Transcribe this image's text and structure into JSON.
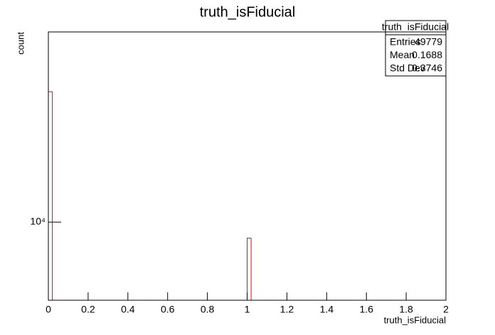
{
  "chart_data": {
    "type": "histogram",
    "title": "truth_isFiducial",
    "x_label": "truth_isFiducial",
    "y_label": "count",
    "bins": [
      0,
      0.02,
      0.04,
      0.06,
      0.08,
      0.1,
      0.12,
      0.14,
      0.16,
      0.18,
      0.2,
      0.22,
      0.24,
      0.26,
      0.28,
      0.3,
      0.32,
      0.34,
      0.36,
      0.38,
      0.4,
      0.42,
      0.44,
      0.46,
      0.48,
      0.5,
      0.52,
      0.54,
      0.56,
      0.58,
      0.6,
      0.62,
      0.64,
      0.66,
      0.68,
      0.7,
      0.72,
      0.74,
      0.76,
      0.78,
      0.8,
      0.82,
      0.84,
      0.86,
      0.88,
      0.9,
      0.92,
      0.94,
      0.96,
      0.98,
      1,
      1.02,
      1.04,
      1.06,
      1.08,
      1.1,
      1.12,
      1.14,
      1.16,
      1.18,
      1.2,
      1.22,
      1.24,
      1.26,
      1.28,
      1.3,
      1.32,
      1.34,
      1.36,
      1.38,
      1.4,
      1.42,
      1.44,
      1.46,
      1.48,
      1.5,
      1.52,
      1.54,
      1.56,
      1.58,
      1.6,
      1.62,
      1.64,
      1.66,
      1.68,
      1.7,
      1.72,
      1.74,
      1.76,
      1.78,
      1.8,
      1.82,
      1.84,
      1.86,
      1.88,
      1.9,
      1.92,
      1.94,
      1.96,
      1.98,
      2
    ],
    "values": [
      41376,
      0,
      0,
      0,
      0,
      0,
      0,
      0,
      0,
      0,
      0,
      0,
      0,
      0,
      0,
      0,
      0,
      0,
      0,
      0,
      0,
      0,
      0,
      0,
      0,
      0,
      0,
      0,
      0,
      0,
      0,
      0,
      0,
      0,
      0,
      0,
      0,
      0,
      0,
      0,
      0,
      0,
      0,
      0,
      0,
      0,
      0,
      0,
      0,
      0,
      8403,
      0,
      0,
      0,
      0,
      0,
      0,
      0,
      0,
      0,
      0,
      0,
      0,
      0,
      0,
      0,
      0,
      0,
      0,
      0,
      0,
      0,
      0,
      0,
      0,
      0,
      0,
      0,
      0,
      0,
      0,
      0,
      0,
      0,
      0,
      0,
      0,
      0,
      0,
      0,
      0,
      0,
      0,
      0,
      0,
      0,
      0,
      0,
      0,
      0
    ],
    "color": "#ff0000",
    "xlim": [
      0,
      2
    ],
    "xticks": [
      0,
      0.2,
      0.4,
      0.6,
      0.8,
      1,
      1.2,
      1.4,
      1.6,
      1.8,
      2
    ],
    "ylim": [
      4276,
      79300
    ],
    "yticks": [
      {
        "value": 10000,
        "label": "10⁴"
      }
    ],
    "log_y": true,
    "stats": {
      "title": "truth_isFiducial",
      "rows": [
        [
          "Entries",
          "49779"
        ],
        [
          "Mean",
          "0.1688"
        ],
        [
          "Std Dev",
          "0.3746"
        ]
      ]
    }
  }
}
